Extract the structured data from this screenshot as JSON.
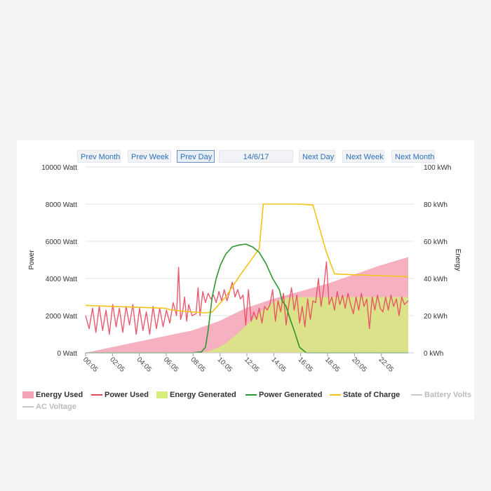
{
  "nav": {
    "prev_month": "Prev Month",
    "prev_week": "Prev Week",
    "prev_day": "Prev Day",
    "date": "14/6/17",
    "next_day": "Next Day",
    "next_week": "Next Week",
    "next_month": "Next Month"
  },
  "chart_data": {
    "type": "line",
    "title": "",
    "ylabel_left": "Power",
    "ylabel_right": "Energy",
    "ylim_left": [
      0,
      10000
    ],
    "ylim_right": [
      0,
      100
    ],
    "yticks_left": [
      "0 Watt",
      "2000 Watt",
      "4000 Watt",
      "6000 Watt",
      "8000 Watt",
      "10000 Watt"
    ],
    "yticks_right": [
      "0 kWh",
      "20 kWh",
      "40 kWh",
      "60 kWh",
      "80 kWh",
      "100 kWh"
    ],
    "xticks": [
      "00:05",
      "02:05",
      "04:05",
      "06:05",
      "08:05",
      "10:05",
      "12:05",
      "14:05",
      "16:05",
      "18:05",
      "20:05",
      "22:05"
    ],
    "xlim_hours": [
      0.083,
      24.5
    ],
    "grid": true,
    "legend_position": "bottom",
    "colors": {
      "energy_used": "#f4a3b5",
      "power_used": "#e8485f",
      "energy_generated": "#d6ef7a",
      "power_generated": "#2e9630",
      "state_of_charge": "#f2c417",
      "muted": "#c8c8c8"
    },
    "series": [
      {
        "name": "Energy Used",
        "axis": "right",
        "kind": "area",
        "x": [
          0.083,
          2,
          4,
          6,
          8,
          10,
          12,
          14,
          16,
          18,
          20,
          22,
          24.083
        ],
        "y": [
          0,
          3,
          6,
          9,
          12,
          17,
          24,
          29,
          33,
          37,
          42,
          47,
          51.5
        ]
      },
      {
        "name": "Power Used",
        "axis": "left",
        "kind": "line",
        "x": [
          0.083,
          0.35,
          0.6,
          0.85,
          1.1,
          1.35,
          1.6,
          1.85,
          2.1,
          2.35,
          2.6,
          2.85,
          3.1,
          3.35,
          3.6,
          3.85,
          4.1,
          4.35,
          4.6,
          4.85,
          5.1,
          5.35,
          5.6,
          5.85,
          6.1,
          6.35,
          6.6,
          6.85,
          7.0,
          7.15,
          7.3,
          7.45,
          7.6,
          7.75,
          8.0,
          8.3,
          8.45,
          8.6,
          8.8,
          9.0,
          9.2,
          9.4,
          9.6,
          9.8,
          10.0,
          10.2,
          10.4,
          10.6,
          10.8,
          11.0,
          11.2,
          11.4,
          11.6,
          11.8,
          12.0,
          12.2,
          12.4,
          12.6,
          12.8,
          13.0,
          13.2,
          13.4,
          13.6,
          13.8,
          14.0,
          14.2,
          14.4,
          14.6,
          14.8,
          15.0,
          15.2,
          15.4,
          15.6,
          15.8,
          16.0,
          16.2,
          16.4,
          16.6,
          16.8,
          17.0,
          17.2,
          17.4,
          17.6,
          17.8,
          18.0,
          18.2,
          18.4,
          18.6,
          18.8,
          19.0,
          19.2,
          19.4,
          19.6,
          19.8,
          20.0,
          20.2,
          20.4,
          20.6,
          20.8,
          21.0,
          21.2,
          21.4,
          21.6,
          21.8,
          22.0,
          22.2,
          22.4,
          22.6,
          22.8,
          23.0,
          23.2,
          23.4,
          23.6,
          23.8,
          24.083
        ],
        "y": [
          2000,
          1300,
          2400,
          1100,
          2500,
          1200,
          2300,
          1000,
          2600,
          1400,
          2400,
          1100,
          2500,
          1500,
          2600,
          1000,
          2400,
          1200,
          2200,
          1000,
          2500,
          1300,
          2400,
          1400,
          2300,
          1600,
          2700,
          2000,
          4600,
          1800,
          2200,
          3000,
          1700,
          2600,
          2000,
          2100,
          3500,
          2000,
          3300,
          2700,
          3200,
          2900,
          3100,
          2700,
          3300,
          2800,
          3400,
          2800,
          3300,
          3800,
          3000,
          3400,
          2900,
          3100,
          1500,
          3400,
          1700,
          2200,
          1800,
          2400,
          1600,
          2500,
          2300,
          2600,
          3400,
          1700,
          2800,
          2200,
          3200,
          1500,
          2600,
          3500,
          2300,
          3100,
          1600,
          2500,
          1400,
          2900,
          1800,
          2800,
          2700,
          4000,
          2500,
          3500,
          4900,
          2600,
          3000,
          2300,
          3300,
          2600,
          3100,
          2400,
          3200,
          2600,
          2100,
          3000,
          2300,
          3200,
          2500,
          2900,
          1300,
          3000,
          2300,
          3100,
          2400,
          2200,
          3000,
          2300,
          3100,
          2500,
          2900,
          2000,
          3000,
          2600,
          2800
        ]
      },
      {
        "name": "Energy Generated",
        "axis": "right",
        "kind": "area",
        "x": [
          0.083,
          8.5,
          9.0,
          9.5,
          10.0,
          10.5,
          11.0,
          11.5,
          12.0,
          12.5,
          13.0,
          13.5,
          14.0,
          14.5,
          15.0,
          15.5,
          16.0,
          24.083
        ],
        "y": [
          0,
          0,
          0.5,
          1.5,
          3,
          5,
          8,
          11,
          14.5,
          18,
          21.5,
          24.5,
          27,
          28.5,
          29.5,
          30,
          30,
          30
        ]
      },
      {
        "name": "Power Generated",
        "axis": "left",
        "kind": "line",
        "x": [
          0.083,
          8.0,
          8.7,
          9.0,
          9.2,
          9.5,
          9.8,
          10.1,
          10.5,
          11.0,
          11.5,
          12.0,
          12.5,
          13.0,
          13.5,
          14.0,
          14.5,
          14.7,
          15.0,
          15.3,
          15.6,
          16.0,
          16.5,
          24.083
        ],
        "y": [
          0,
          0,
          50,
          300,
          1200,
          3000,
          4000,
          4700,
          5300,
          5700,
          5800,
          5850,
          5700,
          5400,
          4800,
          4000,
          3400,
          2800,
          2500,
          1800,
          1200,
          300,
          0,
          0
        ]
      },
      {
        "name": "State of Charge",
        "axis": "right",
        "kind": "line",
        "x": [
          0.083,
          2.0,
          4.0,
          6.0,
          6.5,
          8.0,
          9.0,
          9.5,
          10.5,
          11.5,
          12.5,
          13.0,
          13.3,
          14.0,
          15.0,
          16.0,
          17.0,
          18.0,
          18.6,
          20.0,
          22.0,
          24.083
        ],
        "y": [
          25.5,
          25,
          24.5,
          24,
          23,
          22,
          21.5,
          22,
          30,
          41,
          51,
          56,
          80,
          80,
          80,
          80,
          79.5,
          54,
          42.5,
          42,
          41.5,
          41
        ]
      },
      {
        "name": "Battery Volts",
        "axis": "left",
        "kind": "line",
        "x": [],
        "y": []
      },
      {
        "name": "AC Voltage",
        "axis": "left",
        "kind": "line",
        "x": [],
        "y": []
      }
    ]
  }
}
